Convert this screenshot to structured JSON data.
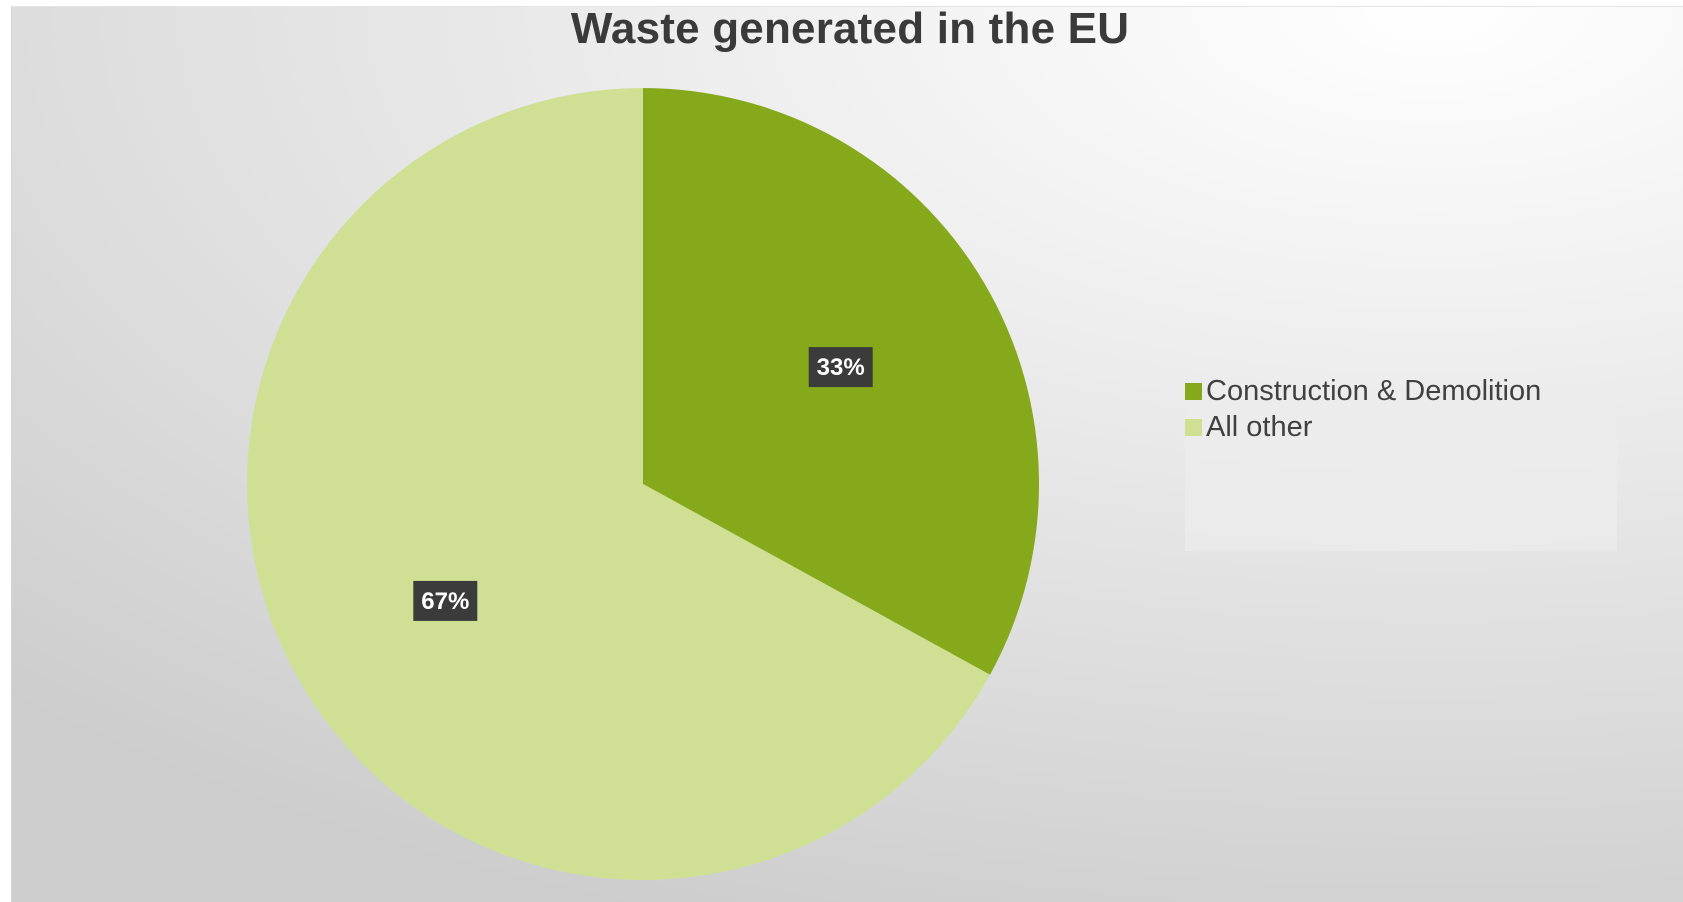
{
  "chart_data": {
    "type": "pie",
    "title": "Waste generated in the EU",
    "legend_position": "right",
    "slices": [
      {
        "label": "Construction & Demolition",
        "value": 33,
        "display": "33%",
        "color": "#86a91c"
      },
      {
        "label": "All other",
        "value": 67,
        "display": "67%",
        "color": "#cfe095"
      }
    ]
  }
}
